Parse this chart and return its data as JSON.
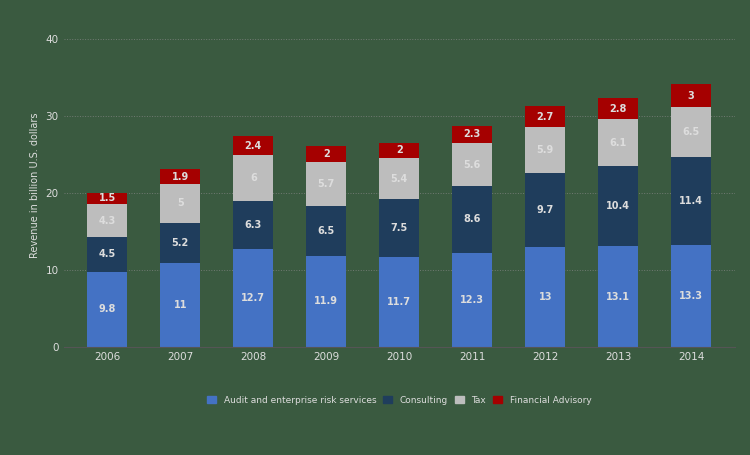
{
  "years": [
    "2006",
    "2007",
    "2008",
    "2009",
    "2010",
    "2011",
    "2012",
    "2013",
    "2014"
  ],
  "audit": [
    9.8,
    11,
    12.7,
    11.9,
    11.7,
    12.3,
    13,
    13.1,
    13.3
  ],
  "consulting": [
    4.5,
    5.2,
    6.3,
    6.5,
    7.5,
    8.6,
    9.7,
    10.4,
    11.4
  ],
  "tax": [
    4.3,
    5,
    6,
    5.7,
    5.4,
    5.6,
    5.9,
    6.1,
    6.5
  ],
  "financial_advisory": [
    1.5,
    1.9,
    2.4,
    2,
    2,
    2.3,
    2.7,
    2.8,
    3
  ],
  "audit_color": "#4472C4",
  "consulting_color": "#1F3D5C",
  "tax_color": "#BDBDBD",
  "financial_advisory_color": "#A50000",
  "background_color": "#3A5A40",
  "ylabel": "Revenue in billion U.S. dollars",
  "yticks": [
    0,
    10,
    20,
    30,
    40
  ],
  "ylim": [
    0,
    42
  ],
  "grid_color": "#888888",
  "text_color": "#DDDDDD",
  "legend_labels": [
    "Audit and enterprise risk services",
    "Consulting",
    "Tax",
    "Financial Advisory"
  ]
}
